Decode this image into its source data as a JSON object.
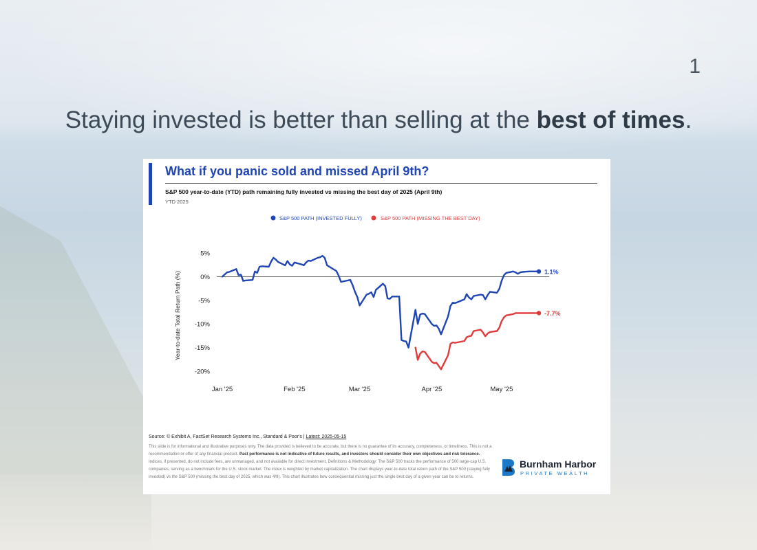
{
  "page": {
    "number": "1"
  },
  "headline": {
    "regular": "Staying invested is better than selling at the ",
    "bold": "best of times",
    "end": "."
  },
  "card": {
    "title": "What if you panic sold and missed April 9th?",
    "subtitle": "S&P 500 year-to-date (YTD) path remaining fully invested vs missing the best day of 2025 (April 9th)",
    "period": "YTD 2025",
    "source_prefix": "Source: © Exhibit A, FactSet Research Systems Inc., Standard & Poor's | ",
    "source_latest": "Latest: 2025-05-15",
    "disclaimer_1": "This slide is for informational and illustrative purposes only. The data provided is believed to be accurate, but there is no guarantee of its accuracy, completeness, or timeliness. This is not a recommendation or offer of any financial product. ",
    "disclaimer_bold": "Past performance is not indicative of future results, and investors should consider their own objectives and risk tolerance.",
    "disclaimer_2": " Indices, if presented, do not include fees, are unmanaged, and not available for direct investment. Definitions & Methodology: The S&P 500 tracks the performance of 500 large-cap U.S. companies, serving as a benchmark for the U.S. stock market. The index is weighted by market capitalization. The chart displays year-to-date total return path of the S&P 500 (staying fully invested) vs the S&P 500 (missing the best day of 2025, which was 4/9). This chart illustrates how consequential missing just the single best day of a given year can be to returns."
  },
  "logo": {
    "name": "Burnham Harbor",
    "sub": "PRIVATE WEALTH"
  },
  "colors": {
    "blue": "#1f45b4",
    "red": "#e03a3a",
    "accent": "#1f45b4"
  },
  "chart_data": {
    "type": "line",
    "title": "What if you panic sold and missed April 9th?",
    "ylabel": "Year-to-date Total Return Path (%)",
    "xlabel": "",
    "ylim": [
      -20,
      5
    ],
    "yticks": [
      5,
      0,
      -5,
      -10,
      -15,
      -20
    ],
    "ytick_labels": [
      "5%",
      "0%",
      "-5%",
      "-10%",
      "-15%",
      "-20%"
    ],
    "xticks": [
      {
        "label": "Jan '25",
        "day": 0
      },
      {
        "label": "Feb '25",
        "day": 31
      },
      {
        "label": "Mar '25",
        "day": 59
      },
      {
        "label": "Apr '25",
        "day": 90
      },
      {
        "label": "May '25",
        "day": 120
      }
    ],
    "legend_position": "top-center",
    "series": [
      {
        "name": "S&P 500 PATH (INVESTED FULLY)",
        "color": "#1f45b4",
        "end_label": "1.1%",
        "x": [
          0,
          2,
          3,
          6,
          7,
          8,
          9,
          10,
          13,
          14,
          15,
          16,
          17,
          20,
          21,
          22,
          23,
          24,
          27,
          28,
          29,
          30,
          31,
          34,
          35,
          36,
          37,
          38,
          41,
          42,
          43,
          44,
          45,
          48,
          49,
          50,
          51,
          55,
          56,
          57,
          58,
          59,
          62,
          63,
          64,
          65,
          66,
          69,
          70,
          71,
          72,
          73,
          76,
          77,
          78,
          79,
          80,
          83,
          84,
          85,
          86,
          87,
          90,
          91,
          92,
          93,
          94,
          97,
          98,
          99,
          100,
          101,
          104,
          105,
          106,
          107,
          108,
          111,
          112,
          113,
          114,
          115,
          118,
          119,
          120,
          121,
          122,
          125,
          126,
          127,
          128,
          129,
          132,
          133,
          134,
          135,
          136
        ],
        "y": [
          0,
          0.9,
          1.0,
          1.6,
          0.3,
          0.4,
          -0.9,
          -0.8,
          -0.7,
          1.1,
          0.8,
          2.1,
          2.2,
          2.1,
          3.2,
          4.0,
          3.6,
          3.1,
          2.4,
          3.3,
          2.6,
          2.3,
          3.0,
          2.6,
          2.4,
          3.0,
          3.4,
          3.3,
          4.0,
          4.1,
          4.4,
          4.0,
          2.4,
          1.5,
          1.2,
          0.2,
          -1.1,
          -0.7,
          -1.8,
          -3.2,
          -4.3,
          -6.1,
          -3.8,
          -3.6,
          -3.3,
          -4.3,
          -2.8,
          -1.5,
          -2.0,
          -4.6,
          -4.7,
          -4.2,
          -4.2,
          -13.4,
          -13.6,
          -13.7,
          -15.0,
          -7.0,
          -10.0,
          -8.0,
          -7.8,
          -7.9,
          -10.0,
          -10.4,
          -10.3,
          -11.0,
          -12.2,
          -8.4,
          -6.2,
          -5.5,
          -5.6,
          -5.4,
          -4.8,
          -3.7,
          -4.4,
          -4.8,
          -4.1,
          -3.8,
          -3.9,
          -4.8,
          -3.9,
          -3.2,
          -3.4,
          -2.6,
          -0.9,
          0.3,
          0.8,
          1.1,
          0.9,
          0.6,
          0.9,
          1.0,
          1.1,
          1.1,
          1.1,
          1.1,
          1.1
        ]
      },
      {
        "name": "S&P 500 PATH (MISSING THE BEST DAY)",
        "color": "#e03a3a",
        "end_label": "-7.7%",
        "x": [
          83,
          84,
          85,
          86,
          87,
          90,
          91,
          92,
          93,
          94,
          97,
          98,
          99,
          100,
          101,
          104,
          105,
          106,
          107,
          108,
          111,
          112,
          113,
          114,
          115,
          118,
          119,
          120,
          121,
          122,
          125,
          126,
          127,
          128,
          129,
          132,
          133,
          134,
          135,
          136
        ],
        "y": [
          -15.0,
          -17.6,
          -16.3,
          -15.8,
          -15.9,
          -18.0,
          -18.3,
          -18.2,
          -18.9,
          -19.6,
          -16.6,
          -14.2,
          -13.9,
          -14.0,
          -13.9,
          -13.6,
          -12.8,
          -12.6,
          -12.5,
          -11.5,
          -11.2,
          -11.8,
          -12.6,
          -12.0,
          -11.7,
          -11.5,
          -10.8,
          -9.4,
          -8.6,
          -8.2,
          -7.9,
          -7.7,
          -7.7,
          -7.7,
          -7.7,
          -7.7,
          -7.7,
          -7.7,
          -7.7,
          -7.7
        ]
      }
    ]
  }
}
